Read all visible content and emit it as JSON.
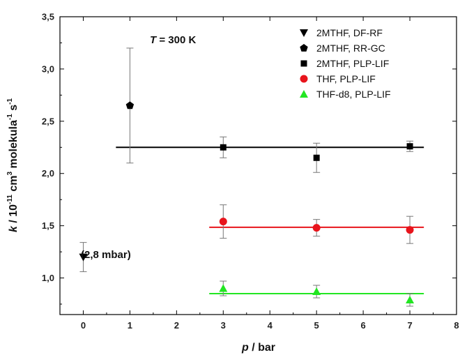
{
  "chart_data": {
    "type": "scatter",
    "xlabel": {
      "main": "p",
      "rest": " / bar"
    },
    "ylabel": {
      "k": "k",
      "p1": " / 10",
      "e1": "-11",
      "p2": " cm",
      "e2": "3",
      "p3": " molekula",
      "e3": "-1",
      "p4": " s",
      "e4": "-1"
    },
    "xlim": [
      -0.5,
      8
    ],
    "ylim": [
      0.65,
      3.5
    ],
    "x_ticks": [
      "0",
      "1",
      "2",
      "3",
      "4",
      "5",
      "6",
      "7",
      "8"
    ],
    "x_tick_values": [
      0,
      1,
      2,
      3,
      4,
      5,
      6,
      7,
      8
    ],
    "y_ticks": [
      "1,0",
      "1,5",
      "2,0",
      "2,5",
      "3,0",
      "3,5"
    ],
    "y_tick_values": [
      1.0,
      1.5,
      2.0,
      2.5,
      3.0,
      3.5
    ],
    "grid": false,
    "legend_position": "top-right",
    "annotation_temperature": {
      "italic": "T",
      "rest": " = 300 K"
    },
    "annotation_pressure": "(2,8 mbar)",
    "series": [
      {
        "name": "2MTHF, DF-RF",
        "marker": "triangle-down",
        "color": "#000000",
        "points": [
          {
            "x": 0,
            "y": 1.2,
            "err": 0.14
          }
        ]
      },
      {
        "name": "2MTHF, RR-GC",
        "marker": "pentagon",
        "color": "#000000",
        "points": [
          {
            "x": 1,
            "y": 2.65,
            "err": 0.55
          }
        ]
      },
      {
        "name": "2MTHF, PLP-LIF",
        "marker": "square",
        "color": "#000000",
        "points": [
          {
            "x": 3,
            "y": 2.25,
            "err": 0.1
          },
          {
            "x": 5,
            "y": 2.15,
            "err": 0.14
          },
          {
            "x": 7,
            "y": 2.26,
            "err": 0.05
          }
        ]
      },
      {
        "name": "THF, PLP-LIF",
        "marker": "circle",
        "color": "#e8141c",
        "points": [
          {
            "x": 3,
            "y": 1.54,
            "err": 0.16
          },
          {
            "x": 5,
            "y": 1.48,
            "err": 0.08
          },
          {
            "x": 7,
            "y": 1.46,
            "err": 0.13
          }
        ]
      },
      {
        "name": "THF-d8, PLP-LIF",
        "marker": "triangle-up",
        "color": "#22e622",
        "points": [
          {
            "x": 3,
            "y": 0.9,
            "err": 0.07
          },
          {
            "x": 5,
            "y": 0.87,
            "err": 0.06
          },
          {
            "x": 7,
            "y": 0.79,
            "err": 0.06
          }
        ]
      }
    ],
    "fit_lines": [
      {
        "color": "#000000",
        "x": [
          0.7,
          7.3
        ],
        "y": 2.25
      },
      {
        "color": "#e8141c",
        "x": [
          2.7,
          7.3
        ],
        "y": 1.485
      },
      {
        "color": "#22e622",
        "x": [
          2.7,
          7.3
        ],
        "y": 0.85
      }
    ]
  }
}
